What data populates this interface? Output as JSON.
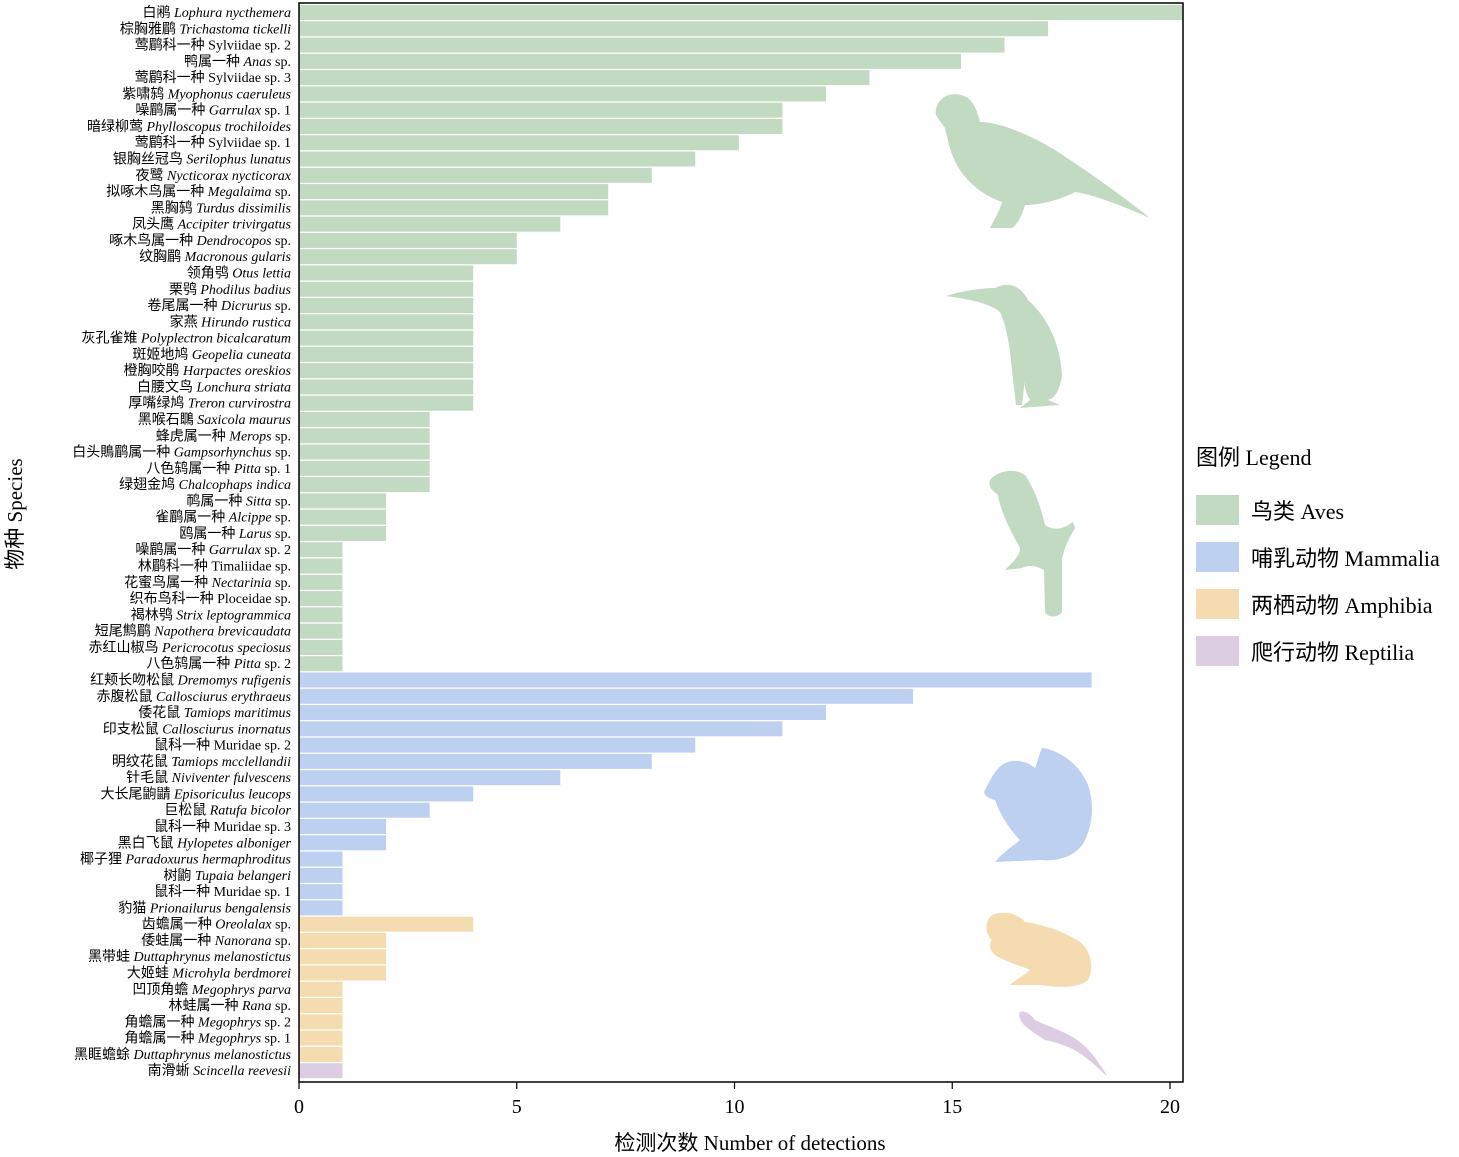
{
  "chart_data": {
    "type": "bar",
    "orientation": "horizontal",
    "xlabel": "检测次数 Number of detections",
    "ylabel": "物种 Species",
    "xlim": [
      0,
      20.3
    ],
    "xticks": [
      "0",
      "5",
      "10",
      "15",
      "20"
    ],
    "grid": false,
    "legend_position": "right",
    "legend": {
      "title": "图例 Legend",
      "items": [
        {
          "key": "aves",
          "label": "鸟类 Aves",
          "color": "#c2d9c2"
        },
        {
          "key": "mammalia",
          "label": "哺乳动物 Mammalia",
          "color": "#bdd0f0"
        },
        {
          "key": "amphibia",
          "label": "两栖动物 Amphibia",
          "color": "#f4dcb0"
        },
        {
          "key": "reptilia",
          "label": "爬行动物 Reptilia",
          "color": "#ddcde2"
        }
      ]
    },
    "icons": [
      {
        "name": "pheasant-silhouette-icon",
        "group": "aves"
      },
      {
        "name": "heron-silhouette-icon",
        "group": "aves"
      },
      {
        "name": "perched-bird-silhouette-icon",
        "group": "aves"
      },
      {
        "name": "squirrel-silhouette-icon",
        "group": "mammalia"
      },
      {
        "name": "frog-silhouette-icon",
        "group": "amphibia"
      },
      {
        "name": "lizard-silhouette-icon",
        "group": "reptilia"
      }
    ],
    "bars": [
      {
        "cn": "白鹇",
        "sci": "Lophura nycthemera",
        "extra": "",
        "value": 20.3,
        "group": "aves"
      },
      {
        "cn": "棕胸雅鹛",
        "sci": "Trichastoma tickelli",
        "extra": "",
        "value": 17.2,
        "group": "aves"
      },
      {
        "cn": "莺鹛科一种 Sylviidae sp. 2",
        "sci": "",
        "extra": "",
        "value": 16.2,
        "group": "aves"
      },
      {
        "cn": "鸭属一种",
        "sci": "Anas",
        "extra": " sp.",
        "value": 15.2,
        "group": "aves"
      },
      {
        "cn": "莺鹛科一种 Sylviidae sp. 3",
        "sci": "",
        "extra": "",
        "value": 13.1,
        "group": "aves"
      },
      {
        "cn": "紫啸鸫",
        "sci": "Myophonus caeruleus",
        "extra": "",
        "value": 12.1,
        "group": "aves"
      },
      {
        "cn": "噪鹛属一种",
        "sci": "Garrulax",
        "extra": " sp. 1",
        "value": 11.1,
        "group": "aves"
      },
      {
        "cn": "暗绿柳莺",
        "sci": "Phylloscopus trochiloides",
        "extra": "",
        "value": 11.1,
        "group": "aves"
      },
      {
        "cn": "莺鹛科一种 Sylviidae sp. 1",
        "sci": "",
        "extra": "",
        "value": 10.1,
        "group": "aves"
      },
      {
        "cn": "银胸丝冠鸟",
        "sci": "Serilophus lunatus",
        "extra": "",
        "value": 9.1,
        "group": "aves"
      },
      {
        "cn": "夜鹭",
        "sci": "Nycticorax nycticorax",
        "extra": "",
        "value": 8.1,
        "group": "aves"
      },
      {
        "cn": "拟啄木鸟属一种",
        "sci": "Megalaima",
        "extra": " sp.",
        "value": 7.1,
        "group": "aves"
      },
      {
        "cn": "黑胸鸫",
        "sci": "Turdus dissimilis",
        "extra": "",
        "value": 7.1,
        "group": "aves"
      },
      {
        "cn": "凤头鹰",
        "sci": "Accipiter trivirgatus",
        "extra": "",
        "value": 6.0,
        "group": "aves"
      },
      {
        "cn": "啄木鸟属一种",
        "sci": "Dendrocopos",
        "extra": " sp.",
        "value": 5.0,
        "group": "aves"
      },
      {
        "cn": "纹胸鹛",
        "sci": "Macronous gularis",
        "extra": "",
        "value": 5.0,
        "group": "aves"
      },
      {
        "cn": "领角鸮",
        "sci": "Otus lettia",
        "extra": "",
        "value": 4.0,
        "group": "aves"
      },
      {
        "cn": "栗鸮",
        "sci": "Phodilus badius",
        "extra": "",
        "value": 4.0,
        "group": "aves"
      },
      {
        "cn": "卷尾属一种",
        "sci": "Dicrurus",
        "extra": " sp.",
        "value": 4.0,
        "group": "aves"
      },
      {
        "cn": "家燕",
        "sci": "Hirundo rustica",
        "extra": "",
        "value": 4.0,
        "group": "aves"
      },
      {
        "cn": "灰孔雀雉",
        "sci": "Polyplectron bicalcaratum",
        "extra": "",
        "value": 4.0,
        "group": "aves"
      },
      {
        "cn": "斑姬地鸠",
        "sci": "Geopelia cuneata",
        "extra": "",
        "value": 4.0,
        "group": "aves"
      },
      {
        "cn": "橙胸咬鹃",
        "sci": "Harpactes oreskios",
        "extra": "",
        "value": 4.0,
        "group": "aves"
      },
      {
        "cn": "白腰文鸟",
        "sci": "Lonchura striata",
        "extra": "",
        "value": 4.0,
        "group": "aves"
      },
      {
        "cn": "厚嘴绿鸠",
        "sci": "Treron curvirostra",
        "extra": "",
        "value": 4.0,
        "group": "aves"
      },
      {
        "cn": "黑喉石䳭",
        "sci": "Saxicola maurus",
        "extra": "",
        "value": 3.0,
        "group": "aves"
      },
      {
        "cn": "蜂虎属一种",
        "sci": "Merops",
        "extra": " sp.",
        "value": 3.0,
        "group": "aves"
      },
      {
        "cn": "白头鵙鹛属一种",
        "sci": "Gampsorhynchus",
        "extra": " sp.",
        "value": 3.0,
        "group": "aves"
      },
      {
        "cn": "八色鸫属一种",
        "sci": "Pitta",
        "extra": " sp. 1",
        "value": 3.0,
        "group": "aves"
      },
      {
        "cn": "绿翅金鸠",
        "sci": "Chalcophaps indica",
        "extra": "",
        "value": 3.0,
        "group": "aves"
      },
      {
        "cn": "䴓属一种",
        "sci": "Sitta",
        "extra": " sp.",
        "value": 2.0,
        "group": "aves"
      },
      {
        "cn": "雀鹛属一种",
        "sci": "Alcippe",
        "extra": " sp.",
        "value": 2.0,
        "group": "aves"
      },
      {
        "cn": "鸥属一种",
        "sci": "Larus",
        "extra": " sp.",
        "value": 2.0,
        "group": "aves"
      },
      {
        "cn": "噪鹛属一种",
        "sci": "Garrulax",
        "extra": " sp. 2",
        "value": 1.0,
        "group": "aves"
      },
      {
        "cn": "林鹛科一种 Timaliidae sp.",
        "sci": "",
        "extra": "",
        "value": 1.0,
        "group": "aves"
      },
      {
        "cn": "花蜜鸟属一种",
        "sci": "Nectarinia",
        "extra": " sp.",
        "value": 1.0,
        "group": "aves"
      },
      {
        "cn": "织布鸟科一种 Ploceidae sp.",
        "sci": "",
        "extra": "",
        "value": 1.0,
        "group": "aves"
      },
      {
        "cn": "褐林鸮",
        "sci": "Strix leptogrammica",
        "extra": "",
        "value": 1.0,
        "group": "aves"
      },
      {
        "cn": "短尾鹪鹛",
        "sci": "Napothera brevicaudata",
        "extra": "",
        "value": 1.0,
        "group": "aves"
      },
      {
        "cn": "赤红山椒鸟",
        "sci": "Pericrocotus speciosus",
        "extra": "",
        "value": 1.0,
        "group": "aves"
      },
      {
        "cn": "八色鸫属一种",
        "sci": "Pitta",
        "extra": " sp. 2",
        "value": 1.0,
        "group": "aves"
      },
      {
        "cn": "红颊长吻松鼠",
        "sci": "Dremomys rufigenis",
        "extra": "",
        "value": 18.2,
        "group": "mammalia"
      },
      {
        "cn": "赤腹松鼠",
        "sci": "Callosciurus erythraeus",
        "extra": "",
        "value": 14.1,
        "group": "mammalia"
      },
      {
        "cn": "倭花鼠",
        "sci": "Tamiops maritimus",
        "extra": "",
        "value": 12.1,
        "group": "mammalia"
      },
      {
        "cn": "印支松鼠",
        "sci": "Callosciurus inornatus",
        "extra": "",
        "value": 11.1,
        "group": "mammalia"
      },
      {
        "cn": "鼠科一种 Muridae sp. 2",
        "sci": "",
        "extra": "",
        "value": 9.1,
        "group": "mammalia"
      },
      {
        "cn": "明纹花鼠",
        "sci": "Tamiops mcclellandii",
        "extra": "",
        "value": 8.1,
        "group": "mammalia"
      },
      {
        "cn": "针毛鼠",
        "sci": "Niviventer fulvescens",
        "extra": "",
        "value": 6.0,
        "group": "mammalia"
      },
      {
        "cn": "大长尾鼩鼱",
        "sci": "Episoriculus leucops",
        "extra": "",
        "value": 4.0,
        "group": "mammalia"
      },
      {
        "cn": "巨松鼠",
        "sci": "Ratufa bicolor",
        "extra": "",
        "value": 3.0,
        "group": "mammalia"
      },
      {
        "cn": "鼠科一种 Muridae sp. 3",
        "sci": "",
        "extra": "",
        "value": 2.0,
        "group": "mammalia"
      },
      {
        "cn": "黑白飞鼠",
        "sci": "Hylopetes alboniger",
        "extra": "",
        "value": 2.0,
        "group": "mammalia"
      },
      {
        "cn": "椰子狸",
        "sci": "Paradoxurus hermaphroditus",
        "extra": "",
        "value": 1.0,
        "group": "mammalia"
      },
      {
        "cn": "树鼩",
        "sci": "Tupaia belangeri",
        "extra": "",
        "value": 1.0,
        "group": "mammalia"
      },
      {
        "cn": "鼠科一种 Muridae sp. 1",
        "sci": "",
        "extra": "",
        "value": 1.0,
        "group": "mammalia"
      },
      {
        "cn": "豹猫",
        "sci": "Prionailurus bengalensis",
        "extra": "",
        "value": 1.0,
        "group": "mammalia"
      },
      {
        "cn": "齿蟾属一种",
        "sci": "Oreolalax",
        "extra": " sp.",
        "value": 4.0,
        "group": "amphibia"
      },
      {
        "cn": "倭蛙属一种",
        "sci": "Nanorana",
        "extra": " sp.",
        "value": 2.0,
        "group": "amphibia"
      },
      {
        "cn": "黑带蛙",
        "sci": "Duttaphrynus melanostictus",
        "extra": "",
        "value": 2.0,
        "group": "amphibia"
      },
      {
        "cn": "大姬蛙",
        "sci": "Microhyla berdmorei",
        "extra": "",
        "value": 2.0,
        "group": "amphibia"
      },
      {
        "cn": "凹顶角蟾",
        "sci": "Megophrys parva",
        "extra": "",
        "value": 1.0,
        "group": "amphibia"
      },
      {
        "cn": "林蛙属一种",
        "sci": "Rana",
        "extra": " sp.",
        "value": 1.0,
        "group": "amphibia"
      },
      {
        "cn": "角蟾属一种",
        "sci": "Megophrys",
        "extra": " sp. 2",
        "value": 1.0,
        "group": "amphibia"
      },
      {
        "cn": "角蟾属一种",
        "sci": "Megophrys",
        "extra": " sp. 1",
        "value": 1.0,
        "group": "amphibia"
      },
      {
        "cn": "黑眶蟾蜍",
        "sci": "Duttaphrynus melanostictus",
        "extra": "",
        "value": 1.0,
        "group": "amphibia"
      },
      {
        "cn": "南滑蜥",
        "sci": "Scincella reevesii",
        "extra": "",
        "value": 1.0,
        "group": "reptilia"
      }
    ]
  }
}
